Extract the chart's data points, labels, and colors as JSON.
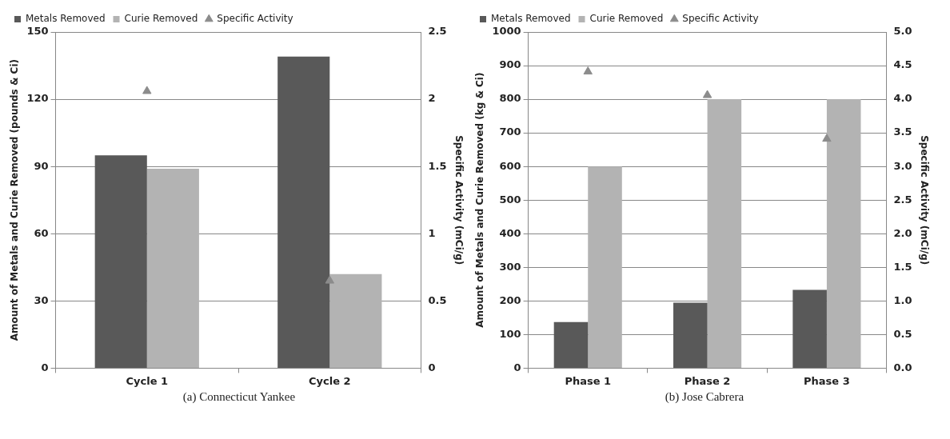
{
  "chart_data": [
    {
      "type": "bar",
      "ylabel": "Amount of Metals and Curie Removed (pounds & Ci)",
      "y2label": "Specific Activity (mCi/g)",
      "categories": [
        "Cycle 1",
        "Cycle 2"
      ],
      "series": [
        {
          "name": "Metals Removed",
          "color": "#595959",
          "values": [
            95,
            139
          ]
        },
        {
          "name": "Curie Removed",
          "color": "#b3b3b3",
          "values": [
            89,
            42
          ]
        },
        {
          "name": "Specific Activity",
          "color": "#8c8c8c",
          "type": "scatter",
          "axis": "y2",
          "marker": "triangle",
          "values": [
            2.06,
            0.65
          ]
        }
      ],
      "ylim": [
        0,
        150
      ],
      "yticks": [
        0,
        30,
        60,
        90,
        120,
        150
      ],
      "y2lim": [
        0,
        2.5
      ],
      "y2ticks": [
        0,
        0.5,
        1,
        1.5,
        2,
        2.5
      ],
      "grid": "y",
      "legend": "top",
      "annotations": [
        "(a) Connecticut Yankee"
      ]
    },
    {
      "type": "bar",
      "ylabel": "Amount of Metals and Curie Removed (kg & Ci)",
      "y2label": "Specific Activity (mCi/g)",
      "categories": [
        "Phase 1",
        "Phase 2",
        "Phase 3"
      ],
      "series": [
        {
          "name": "Metals Removed",
          "color": "#595959",
          "values": [
            137,
            195,
            233
          ]
        },
        {
          "name": "Curie Removed",
          "color": "#b3b3b3",
          "values": [
            600,
            800,
            800
          ]
        },
        {
          "name": "Specific Activity",
          "color": "#8c8c8c",
          "type": "scatter",
          "axis": "y2",
          "marker": "triangle",
          "values": [
            4.41,
            4.06,
            3.41
          ]
        }
      ],
      "ylim": [
        0,
        1000
      ],
      "yticks": [
        0,
        100,
        200,
        300,
        400,
        500,
        600,
        700,
        800,
        900,
        1000
      ],
      "y2lim": [
        0,
        5
      ],
      "y2ticks": [
        {
          "value": 0,
          "label": "0.0"
        },
        {
          "value": 0.5,
          "label": "0.5"
        },
        {
          "value": 1,
          "label": "1.0"
        },
        {
          "value": 1.5,
          "label": "1.5"
        },
        {
          "value": 2,
          "label": "2.0"
        },
        {
          "value": 2.5,
          "label": "2.5"
        },
        {
          "value": 3,
          "label": "3.0"
        },
        {
          "value": 3.5,
          "label": "3.5"
        },
        {
          "value": 4,
          "label": "4.0"
        },
        {
          "value": 4.5,
          "label": "4.5"
        },
        {
          "value": 5,
          "label": "5.0"
        }
      ],
      "grid": "y",
      "legend": "top",
      "annotations": [
        "(b) Jose Cabrera"
      ]
    }
  ]
}
